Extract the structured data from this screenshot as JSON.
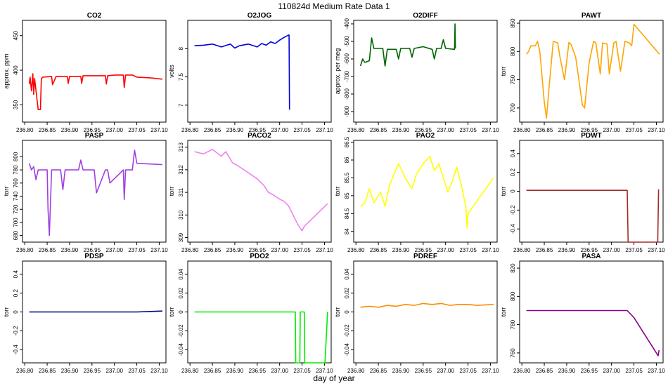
{
  "figure": {
    "title": "110824d   Medium Rate Data 1",
    "xlabel": "day of year"
  },
  "chart_data": [
    {
      "type": "line",
      "title": "CO2",
      "ylabel": "approx. ppm",
      "color": "#ff0000",
      "xlim": [
        236.795,
        237.115
      ],
      "ylim": [
        325,
        472
      ],
      "xticks": [
        "236.80",
        "236.85",
        "236.90",
        "236.95",
        "237.00",
        "237.05",
        "237.10"
      ],
      "yticks": [
        350,
        400,
        450
      ],
      "x": [
        236.81,
        236.812,
        236.815,
        236.818,
        236.82,
        236.822,
        236.83,
        236.835,
        236.837,
        236.84,
        236.86,
        236.862,
        236.87,
        236.895,
        236.897,
        236.9,
        236.925,
        236.927,
        236.93,
        236.98,
        236.982,
        236.985,
        237.0,
        237.02,
        237.022,
        237.025,
        237.04,
        237.05,
        237.08,
        237.107
      ],
      "y": [
        380,
        390,
        370,
        395,
        365,
        388,
        343,
        343,
        388,
        390,
        391,
        379,
        391,
        391,
        381,
        391,
        391,
        381,
        392,
        392,
        380,
        392,
        393,
        393,
        375,
        393,
        393,
        390,
        389,
        387
      ]
    },
    {
      "type": "line",
      "title": "O2JOG",
      "ylabel": "volts",
      "color": "#0000dd",
      "xlim": [
        236.795,
        237.115
      ],
      "ylim": [
        6.7,
        8.5
      ],
      "xticks": [
        "236.80",
        "236.85",
        "236.90",
        "236.95",
        "237.00",
        "237.05",
        "237.10"
      ],
      "yticks": [
        7.0,
        7.5,
        8.0
      ],
      "x": [
        236.81,
        236.83,
        236.85,
        236.87,
        236.89,
        236.9,
        236.91,
        236.93,
        236.95,
        236.96,
        236.97,
        236.98,
        236.99,
        237.0,
        237.01,
        237.02,
        237.021,
        237.022
      ],
      "y": [
        8.05,
        8.06,
        8.08,
        8.03,
        8.08,
        8.01,
        8.05,
        8.08,
        8.03,
        8.09,
        8.06,
        8.12,
        8.09,
        8.15,
        8.2,
        8.24,
        8.24,
        6.92
      ]
    },
    {
      "type": "line",
      "title": "O2DIFF",
      "ylabel": "approx. per meg",
      "color": "#006400",
      "xlim": [
        236.795,
        237.115
      ],
      "ylim": [
        -960,
        -380
      ],
      "xticks": [
        "236.80",
        "236.85",
        "236.90",
        "236.95",
        "237.00",
        "237.05",
        "237.10"
      ],
      "yticks": [
        -400,
        -500,
        -600,
        -700,
        -800,
        -900
      ],
      "x": [
        236.81,
        236.815,
        236.82,
        236.83,
        236.835,
        236.84,
        236.86,
        236.865,
        236.87,
        236.89,
        236.895,
        236.9,
        236.92,
        236.925,
        236.93,
        236.95,
        236.97,
        236.975,
        236.98,
        236.99,
        236.995,
        237.0,
        237.02,
        237.021,
        237.022
      ],
      "y": [
        -640,
        -600,
        -620,
        -610,
        -480,
        -540,
        -540,
        -640,
        -545,
        -545,
        -600,
        -540,
        -540,
        -590,
        -540,
        -530,
        -545,
        -600,
        -540,
        -540,
        -490,
        -540,
        -545,
        -400,
        -540
      ]
    },
    {
      "type": "line",
      "title": "PAWT",
      "ylabel": "torr",
      "color": "#ffa500",
      "xlim": [
        236.795,
        237.115
      ],
      "ylim": [
        675,
        855
      ],
      "xticks": [
        "236.80",
        "236.85",
        "236.90",
        "236.95",
        "237.00",
        "237.05",
        "237.10"
      ],
      "yticks": [
        700,
        750,
        800,
        850
      ],
      "x": [
        236.81,
        236.815,
        236.82,
        236.83,
        236.835,
        236.84,
        236.85,
        236.855,
        236.86,
        236.87,
        236.88,
        236.885,
        236.895,
        236.905,
        236.91,
        236.92,
        236.935,
        236.94,
        236.95,
        236.96,
        236.965,
        236.975,
        236.98,
        236.99,
        236.995,
        237.005,
        237.01,
        237.02,
        237.03,
        237.04,
        237.045,
        237.05,
        237.107
      ],
      "y": [
        795,
        800,
        810,
        810,
        818,
        800,
        710,
        682,
        730,
        818,
        815,
        790,
        750,
        816,
        812,
        790,
        705,
        700,
        780,
        818,
        815,
        760,
        815,
        813,
        760,
        815,
        818,
        765,
        818,
        815,
        810,
        848,
        795
      ]
    },
    {
      "type": "line",
      "title": "PASP",
      "ylabel": "torr",
      "color": "#a040e0",
      "xlim": [
        236.795,
        237.115
      ],
      "ylim": [
        670,
        825
      ],
      "xticks": [
        "236.80",
        "236.85",
        "236.90",
        "236.95",
        "237.00",
        "237.05",
        "237.10"
      ],
      "yticks": [
        680,
        700,
        720,
        740,
        760,
        780,
        800
      ],
      "x": [
        236.81,
        236.815,
        236.82,
        236.825,
        236.83,
        236.84,
        236.85,
        236.852,
        236.855,
        236.86,
        236.88,
        236.885,
        236.89,
        236.92,
        236.925,
        236.93,
        236.955,
        236.96,
        236.98,
        236.985,
        236.99,
        237.02,
        237.022,
        237.025,
        237.04,
        237.045,
        237.05,
        237.107
      ],
      "y": [
        790,
        780,
        785,
        765,
        780,
        780,
        780,
        720,
        680,
        780,
        780,
        750,
        780,
        780,
        795,
        780,
        780,
        745,
        780,
        780,
        760,
        780,
        735,
        780,
        780,
        810,
        790,
        788
      ]
    },
    {
      "type": "line",
      "title": "PACO2",
      "ylabel": "torr",
      "color": "#ee82ee",
      "xlim": [
        236.795,
        237.115
      ],
      "ylim": [
        308.8,
        313.3
      ],
      "xticks": [
        "236.80",
        "236.85",
        "236.90",
        "236.95",
        "237.00",
        "237.05",
        "237.10"
      ],
      "yticks": [
        309,
        310,
        311,
        312,
        313
      ],
      "x": [
        236.81,
        236.83,
        236.85,
        236.87,
        236.88,
        236.895,
        236.905,
        236.92,
        236.935,
        236.95,
        236.965,
        236.975,
        236.985,
        237.0,
        237.01,
        237.02,
        237.03,
        237.04,
        237.05,
        237.055,
        237.107
      ],
      "y": [
        312.8,
        312.7,
        312.9,
        312.6,
        312.8,
        312.3,
        312.2,
        312.0,
        311.8,
        311.6,
        311.3,
        311.0,
        310.9,
        310.7,
        310.6,
        310.4,
        310.0,
        309.6,
        309.3,
        309.5,
        310.5
      ]
    },
    {
      "type": "line",
      "title": "PAO2",
      "ylabel": "torr",
      "color": "#ffff00",
      "xlim": [
        236.795,
        237.115
      ],
      "ylim": [
        83.7,
        86.55
      ],
      "xticks": [
        "236.80",
        "236.85",
        "236.90",
        "236.95",
        "237.00",
        "237.05",
        "237.10"
      ],
      "yticks": [
        84.0,
        84.5,
        85.0,
        85.5,
        86.0,
        86.5
      ],
      "x": [
        236.81,
        236.82,
        236.83,
        236.84,
        236.855,
        236.865,
        236.875,
        236.885,
        236.895,
        236.91,
        236.925,
        236.935,
        236.95,
        236.965,
        236.975,
        236.985,
        236.995,
        237.005,
        237.015,
        237.025,
        237.035,
        237.045,
        237.048,
        237.05,
        237.107
      ],
      "y": [
        84.7,
        84.8,
        85.2,
        84.8,
        85.1,
        84.7,
        85.3,
        85.6,
        85.9,
        85.5,
        85.2,
        85.6,
        85.9,
        86.1,
        85.7,
        85.9,
        85.5,
        85.1,
        85.4,
        85.8,
        85.3,
        84.7,
        84.1,
        84.5,
        85.5
      ]
    },
    {
      "type": "line",
      "title": "PDWT",
      "ylabel": "torr",
      "color": "#a52a2a",
      "xlim": [
        236.795,
        237.115
      ],
      "ylim": [
        -0.54,
        0.54
      ],
      "xticks": [
        "236.80",
        "236.85",
        "236.90",
        "236.95",
        "237.00",
        "237.05",
        "237.10"
      ],
      "yticks": [
        -0.4,
        -0.2,
        0.0,
        0.2,
        0.4
      ],
      "x": [
        236.81,
        236.85,
        236.9,
        236.95,
        237.0,
        237.035,
        237.037,
        237.103,
        237.105
      ],
      "y": [
        0.01,
        0.01,
        0.01,
        0.01,
        0.01,
        0.01,
        -0.54,
        -0.54,
        0.02
      ]
    },
    {
      "type": "line",
      "title": "PDSP",
      "ylabel": "torr",
      "color": "#000080",
      "xlim": [
        236.795,
        237.115
      ],
      "ylim": [
        -0.54,
        0.54
      ],
      "xticks": [
        "236.80",
        "236.85",
        "236.90",
        "236.95",
        "237.00",
        "237.05",
        "237.10"
      ],
      "yticks": [
        -0.4,
        -0.2,
        0.0,
        0.2,
        0.4
      ],
      "x": [
        236.81,
        236.85,
        236.9,
        236.95,
        237.0,
        237.04,
        237.05,
        237.107
      ],
      "y": [
        0.0,
        0.0,
        0.0,
        0.0,
        0.0,
        0.0,
        0.0,
        0.01
      ]
    },
    {
      "type": "line",
      "title": "PDO2",
      "ylabel": "torr",
      "color": "#00ee00",
      "xlim": [
        236.795,
        237.115
      ],
      "ylim": [
        -0.054,
        0.054
      ],
      "xticks": [
        "236.80",
        "236.85",
        "236.90",
        "236.95",
        "237.00",
        "237.05",
        "237.10"
      ],
      "yticks": [
        -0.04,
        -0.02,
        0.0,
        0.02,
        0.04
      ],
      "x": [
        236.81,
        236.85,
        236.9,
        236.95,
        237.0,
        237.035,
        237.036,
        237.045,
        237.046,
        237.055,
        237.056,
        237.101,
        237.107
      ],
      "y": [
        0.0,
        0.0,
        0.0,
        0.0,
        0.0,
        0.0,
        -0.054,
        -0.054,
        0.0,
        0.0,
        -0.054,
        -0.054,
        0.0
      ]
    },
    {
      "type": "line",
      "title": "PDREF",
      "ylabel": "torr",
      "color": "#ff8c00",
      "xlim": [
        236.795,
        237.115
      ],
      "ylim": [
        -0.054,
        0.054
      ],
      "xticks": [
        "236.80",
        "236.85",
        "236.90",
        "236.95",
        "237.00",
        "237.05",
        "237.10"
      ],
      "yticks": [
        -0.04,
        -0.02,
        0.0,
        0.02,
        0.04
      ],
      "x": [
        236.81,
        236.83,
        236.85,
        236.87,
        236.89,
        236.91,
        236.93,
        236.95,
        236.97,
        236.99,
        237.01,
        237.03,
        237.05,
        237.07,
        237.107
      ],
      "y": [
        0.005,
        0.006,
        0.005,
        0.007,
        0.006,
        0.008,
        0.007,
        0.009,
        0.008,
        0.009,
        0.007,
        0.008,
        0.008,
        0.007,
        0.008
      ]
    },
    {
      "type": "line",
      "title": "PASA",
      "ylabel": "torr",
      "color": "#8b008b",
      "xlim": [
        236.795,
        237.115
      ],
      "ylim": [
        753,
        825
      ],
      "xticks": [
        "236.80",
        "236.85",
        "236.90",
        "236.95",
        "237.00",
        "237.05",
        "237.10"
      ],
      "yticks": [
        760,
        780,
        800,
        820
      ],
      "x": [
        236.81,
        236.85,
        236.9,
        236.95,
        237.0,
        237.035,
        237.05,
        237.104,
        237.106
      ],
      "y": [
        790,
        790,
        790,
        790,
        790,
        790,
        785,
        758,
        762
      ]
    }
  ]
}
